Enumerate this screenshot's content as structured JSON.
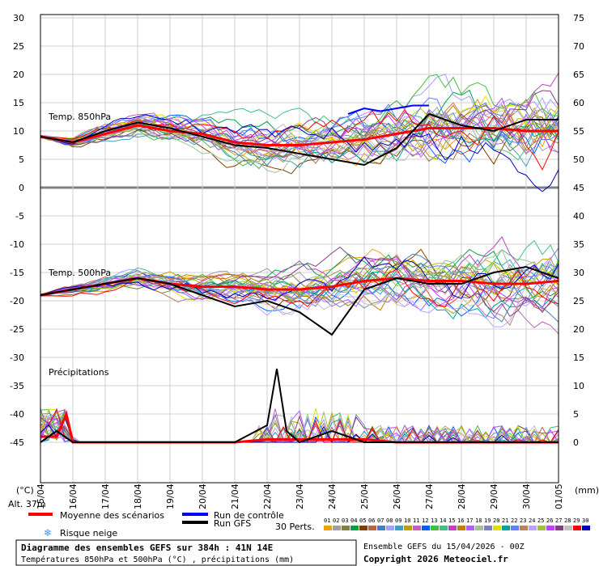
{
  "chart_data": {
    "type": "line",
    "title": "Diagramme des ensembles GEFS sur 384h : 41N 14E",
    "subtitle": "Températures 850hPa et 500hPa (°C) , précipitations (mm)",
    "run_info": "Ensemble GEFS du 15/04/2026 - 00Z",
    "copyright": "Copyright 2026 Meteociel.fr",
    "altitude": "Alt. 37m",
    "left_axis_unit": "(°C)",
    "right_axis_unit": "(mm)",
    "left_ticks": [
      30,
      25,
      20,
      15,
      10,
      5,
      0,
      -5,
      -10,
      -15,
      -20,
      -25,
      -30,
      -35,
      -40,
      -45
    ],
    "right_ticks": [
      75,
      70,
      65,
      60,
      55,
      50,
      45,
      40,
      35,
      30,
      25,
      20,
      15,
      10,
      5,
      0
    ],
    "x_labels": [
      "15/04",
      "16/04",
      "17/04",
      "18/04",
      "19/04",
      "20/04",
      "21/04",
      "22/04",
      "23/04",
      "24/04",
      "25/04",
      "26/04",
      "27/04",
      "28/04",
      "29/04",
      "30/04",
      "01/05"
    ],
    "panel_labels": {
      "t850": "Temp. 850hPa",
      "t500": "Temp. 500hPa",
      "precip": "Précipitations"
    },
    "legend": {
      "mean": "Moyenne des scénarios",
      "control": "Run de contrôle",
      "gfs": "Run GFS",
      "snow": "Risque neige",
      "perts_label": "30 Perts.",
      "perts_numbers": [
        "01",
        "02",
        "03",
        "04",
        "05",
        "06",
        "07",
        "08",
        "09",
        "10",
        "11",
        "12",
        "13",
        "14",
        "15",
        "16",
        "17",
        "18",
        "19",
        "20",
        "21",
        "22",
        "23",
        "24",
        "25",
        "26",
        "27",
        "28",
        "29",
        "30"
      ]
    },
    "colors": {
      "mean": "#ff0000",
      "control": "#0000ff",
      "gfs": "#000000",
      "snow": "#3399ff",
      "perts": [
        "#f0a000",
        "#a0a0a0",
        "#808040",
        "#00a040",
        "#804000",
        "#c06040",
        "#4080c0",
        "#a0a0ff",
        "#40a0c0",
        "#c0a000",
        "#c060c0",
        "#0060ff",
        "#40c040",
        "#40c080",
        "#c040c0",
        "#c08000",
        "#b060ff",
        "#a0c0a0",
        "#8080c0",
        "#e0e000",
        "#00a0a0",
        "#6080ff",
        "#c08060",
        "#c0a0ff",
        "#a0c040",
        "#c040ff",
        "#804080",
        "#c0c0c0",
        "#ff0000",
        "#0000c0"
      ]
    },
    "series": [
      {
        "name": "Moyenne des scénarios",
        "panel": "t850",
        "x": [
          0,
          1,
          2,
          3,
          4,
          5,
          6,
          7,
          8,
          9,
          10,
          11,
          12,
          13,
          14,
          15,
          16
        ],
        "values": [
          9,
          8,
          9.5,
          11,
          10,
          9.5,
          8,
          7.5,
          7.5,
          8,
          8.5,
          9.5,
          10.5,
          10.5,
          10.5,
          10,
          10
        ]
      },
      {
        "name": "Run de contrôle",
        "panel": "t850",
        "x": [
          9.5,
          10,
          10.5,
          11,
          11.5,
          12
        ],
        "values": [
          13,
          14,
          13.5,
          14,
          14.5,
          14.5
        ]
      },
      {
        "name": "Run GFS",
        "panel": "t850",
        "x": [
          0,
          1,
          2,
          3,
          4,
          5,
          6,
          7,
          8,
          9,
          10,
          11,
          12,
          13,
          14,
          15,
          16
        ],
        "values": [
          9,
          8,
          10,
          11.5,
          10.5,
          9,
          7.5,
          7,
          6,
          5,
          4,
          7,
          13,
          11,
          10,
          12,
          12
        ]
      },
      {
        "name": "Moyenne des scénarios",
        "panel": "t500",
        "x": [
          0,
          1,
          2,
          3,
          4,
          5,
          6,
          7,
          8,
          9,
          10,
          11,
          12,
          13,
          14,
          15,
          16
        ],
        "values": [
          -19,
          -18,
          -17,
          -16,
          -17,
          -17.5,
          -17.5,
          -18,
          -18,
          -17.5,
          -16.5,
          -16,
          -16.5,
          -16.5,
          -17,
          -17,
          -16.5
        ]
      },
      {
        "name": "Run GFS",
        "panel": "t500",
        "x": [
          0,
          1,
          2,
          3,
          4,
          5,
          6,
          7,
          8,
          9,
          10,
          11,
          12,
          13,
          14,
          15,
          16
        ],
        "values": [
          -19,
          -18,
          -17,
          -16,
          -17,
          -19,
          -21,
          -20,
          -22,
          -26,
          -18,
          -16,
          -17,
          -17,
          -15,
          -14,
          -16
        ]
      },
      {
        "name": "Moyenne des scénarios",
        "panel": "precip",
        "x": [
          0,
          0.5,
          0.8,
          1,
          2,
          3,
          4,
          5,
          6,
          7,
          8,
          9,
          10,
          11,
          12,
          13,
          14,
          15,
          16
        ],
        "values": [
          1,
          1,
          5,
          0,
          0,
          0,
          0,
          0,
          0,
          0.5,
          0.5,
          0.5,
          0.5,
          0,
          0,
          0,
          0,
          0,
          0
        ]
      },
      {
        "name": "Run GFS",
        "panel": "precip",
        "x": [
          0,
          0.5,
          1,
          2,
          3,
          4,
          5,
          6,
          7,
          7.3,
          7.6,
          8,
          9,
          10,
          11,
          12,
          13,
          14,
          15,
          16
        ],
        "values": [
          0,
          2,
          0,
          0,
          0,
          0,
          0,
          0,
          3,
          13,
          2,
          0,
          2,
          0,
          0,
          0,
          0,
          0,
          0,
          0
        ]
      }
    ]
  }
}
